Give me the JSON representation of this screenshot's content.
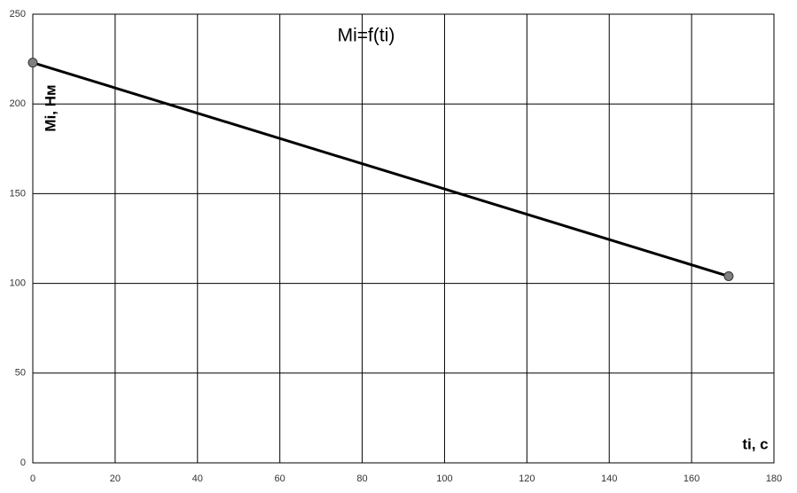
{
  "chart_data": {
    "type": "line",
    "title": "Mi=f(ti)",
    "x_label": "ti, с",
    "y_label": "Mi, Нм",
    "x": [
      0,
      169
    ],
    "values": [
      223,
      104
    ],
    "color": "#000000",
    "marker_color": "#808080",
    "xlim": [
      0,
      180
    ],
    "xticks": [
      0,
      20,
      40,
      60,
      80,
      100,
      120,
      140,
      160,
      180
    ],
    "ylim": [
      0,
      250
    ],
    "yticks": [
      0,
      50,
      100,
      150,
      200,
      250
    ],
    "grid": true
  }
}
